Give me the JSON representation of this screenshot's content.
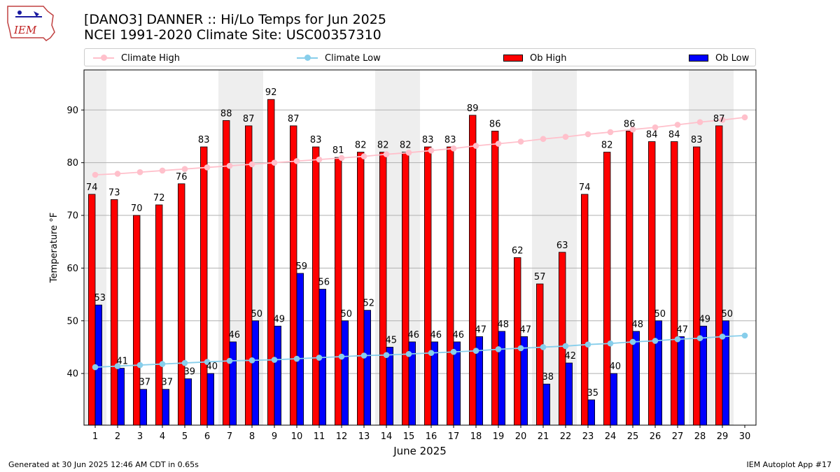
{
  "header": {
    "logo_text": "IEM",
    "title_line1": "[DANO3] DANNER :: Hi/Lo Temps for Jun 2025",
    "title_line2": "NCEI 1991-2020 Climate Site: USC00357310"
  },
  "legend": [
    {
      "label": "Climate High",
      "kind": "line",
      "color": "#ffc0cb"
    },
    {
      "label": "Climate Low",
      "kind": "line",
      "color": "#87ceeb"
    },
    {
      "label": "Ob High",
      "kind": "bar",
      "color": "#ff0000"
    },
    {
      "label": "Ob Low",
      "kind": "bar",
      "color": "#0000ff"
    }
  ],
  "footer": {
    "left": "Generated at 30 Jun 2025 12:46 AM CDT in 0.65s",
    "right": "IEM Autoplot App #17"
  },
  "chart_data": {
    "type": "bar",
    "xlabel": "June 2025",
    "ylabel": "Temperature °F",
    "ylim": [
      30.2,
      97.6
    ],
    "xlim": [
      0.5,
      30.5
    ],
    "yticks": [
      40,
      50,
      60,
      70,
      80,
      90
    ],
    "days": [
      1,
      2,
      3,
      4,
      5,
      6,
      7,
      8,
      9,
      10,
      11,
      12,
      13,
      14,
      15,
      16,
      17,
      18,
      19,
      20,
      21,
      22,
      23,
      24,
      25,
      26,
      27,
      28,
      29,
      30
    ],
    "weekend_days": [
      1,
      7,
      8,
      14,
      15,
      21,
      22,
      28,
      29
    ],
    "grid": "y",
    "series": [
      {
        "name": "Ob High",
        "type": "bar",
        "color": "#ff0000",
        "values": [
          74,
          73,
          70,
          72,
          76,
          83,
          88,
          87,
          92,
          87,
          83,
          81,
          82,
          82,
          82,
          83,
          83,
          89,
          86,
          62,
          57,
          63,
          74,
          82,
          86,
          84,
          84,
          83,
          87
        ]
      },
      {
        "name": "Ob Low",
        "type": "bar",
        "color": "#0000ff",
        "values": [
          53,
          41,
          37,
          37,
          39,
          40,
          46,
          50,
          49,
          59,
          56,
          50,
          52,
          45,
          46,
          46,
          46,
          47,
          48,
          47,
          38,
          42,
          35,
          40,
          48,
          50,
          47,
          49,
          50
        ]
      },
      {
        "name": "Climate High",
        "type": "line",
        "color": "#ffc0cb",
        "values": [
          77.7,
          77.9,
          78.2,
          78.5,
          78.8,
          79.1,
          79.4,
          79.7,
          80.0,
          80.3,
          80.6,
          80.9,
          81.2,
          81.6,
          81.9,
          82.3,
          82.7,
          83.2,
          83.6,
          84.0,
          84.5,
          84.9,
          85.4,
          85.8,
          86.3,
          86.7,
          87.2,
          87.7,
          88.1,
          88.6
        ]
      },
      {
        "name": "Climate Low",
        "type": "line",
        "color": "#87ceeb",
        "values": [
          41.2,
          41.4,
          41.6,
          41.8,
          42.0,
          42.2,
          42.4,
          42.5,
          42.6,
          42.8,
          43.0,
          43.2,
          43.4,
          43.5,
          43.7,
          43.9,
          44.1,
          44.3,
          44.6,
          44.8,
          45.0,
          45.2,
          45.5,
          45.7,
          46.0,
          46.2,
          46.5,
          46.7,
          47.0,
          47.2
        ]
      }
    ]
  }
}
